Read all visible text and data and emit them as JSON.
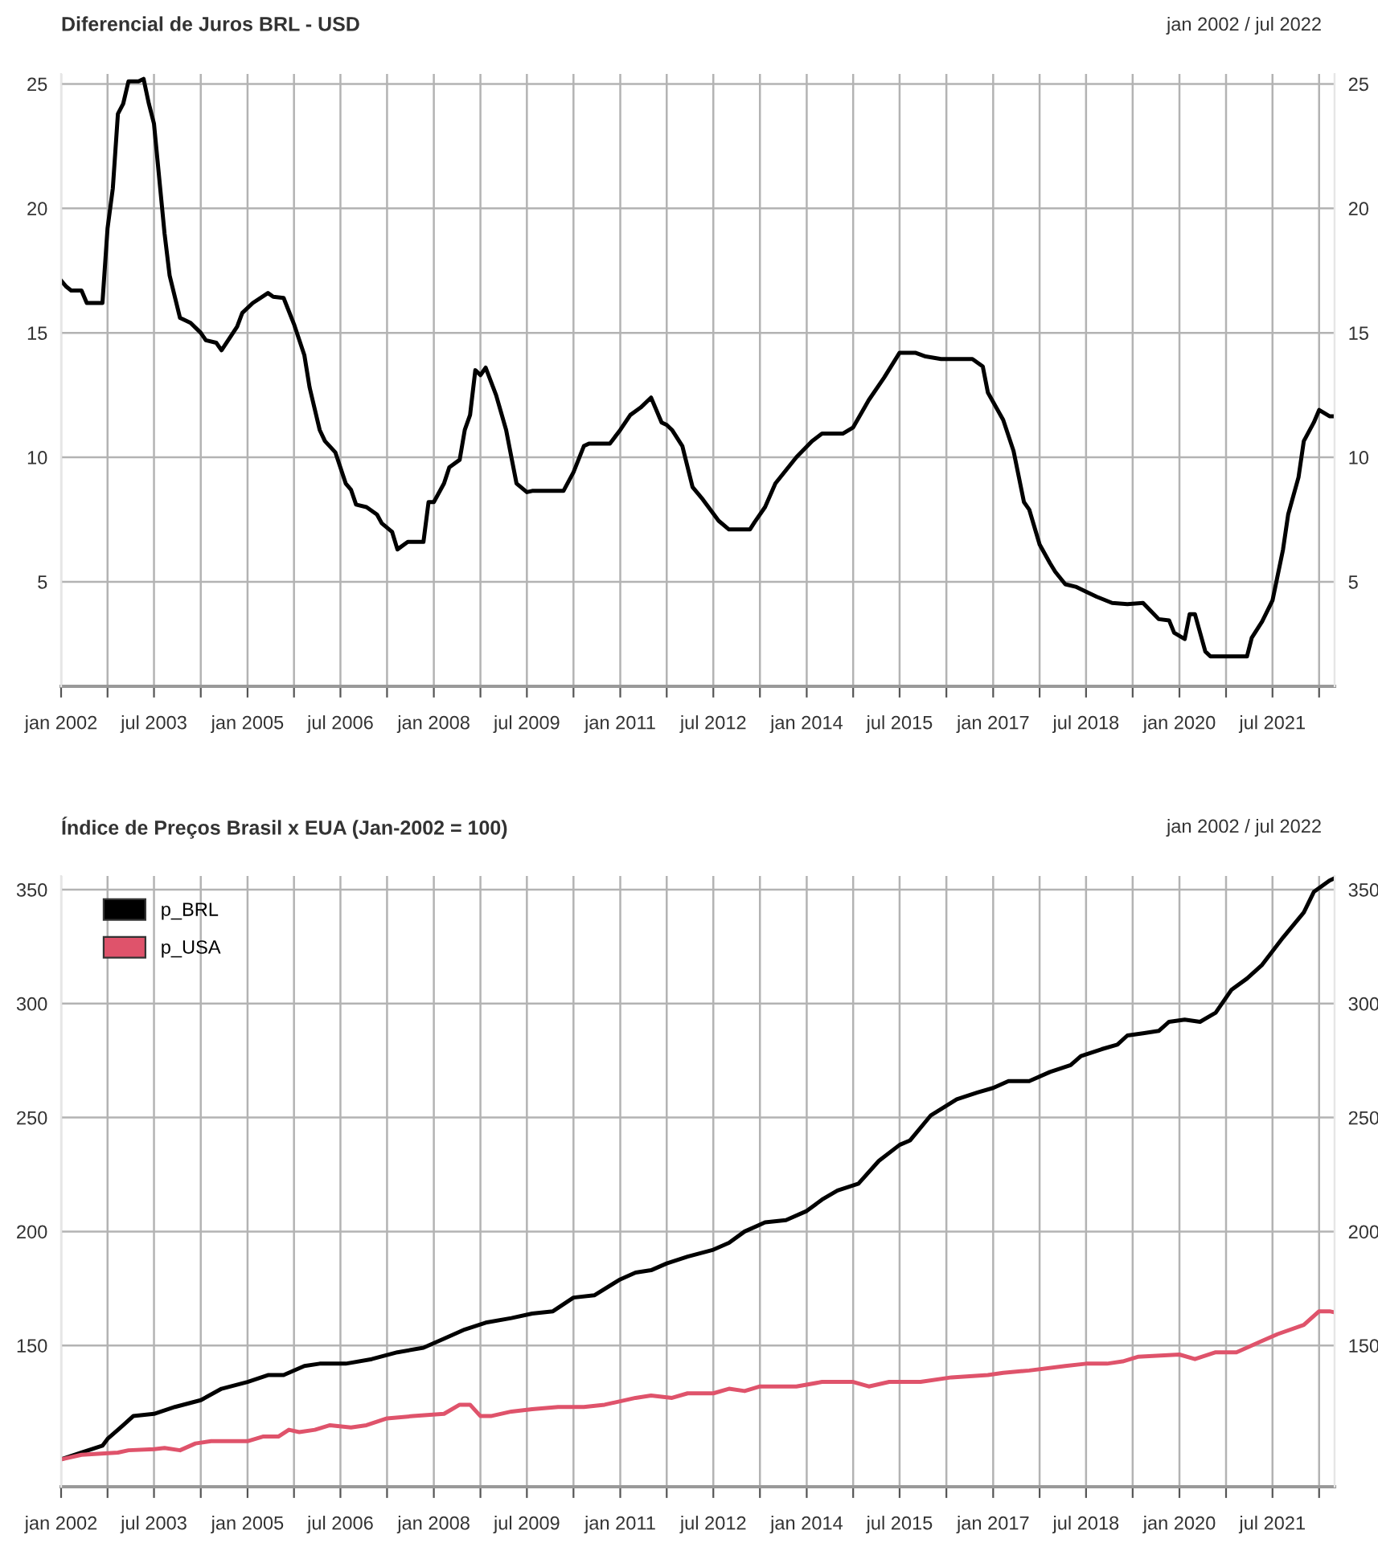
{
  "chart_data": [
    {
      "type": "line",
      "title": "Diferencial de Juros BRL - USD",
      "subtitle": "jan 2002 / jul 2022",
      "x": [
        "2002-01",
        "2002-02",
        "2002-03",
        "2002-05",
        "2002-06",
        "2002-09",
        "2002-10",
        "2002-11",
        "2002-12",
        "2003-01",
        "2003-02",
        "2003-04",
        "2003-05",
        "2003-06",
        "2003-07",
        "2003-09",
        "2003-10",
        "2003-12",
        "2004-02",
        "2004-04",
        "2004-05",
        "2004-07",
        "2004-08",
        "2004-11",
        "2004-12",
        "2005-02",
        "2005-05",
        "2005-06",
        "2005-08",
        "2005-10",
        "2005-12",
        "2006-01",
        "2006-03",
        "2006-04",
        "2006-06",
        "2006-08",
        "2006-09",
        "2006-10",
        "2006-12",
        "2007-02",
        "2007-03",
        "2007-05",
        "2007-06",
        "2007-08",
        "2007-11",
        "2007-12",
        "2008-01",
        "2008-03",
        "2008-04",
        "2008-06",
        "2008-07",
        "2008-08",
        "2008-09",
        "2008-10",
        "2008-11",
        "2009-01",
        "2009-03",
        "2009-04",
        "2009-05",
        "2009-07",
        "2009-08",
        "2010-02",
        "2010-04",
        "2010-06",
        "2010-07",
        "2010-11",
        "2011-01",
        "2011-03",
        "2011-05",
        "2011-07",
        "2011-09",
        "2011-10",
        "2011-11",
        "2012-01",
        "2012-03",
        "2012-05",
        "2012-08",
        "2012-10",
        "2013-02",
        "2013-03",
        "2013-05",
        "2013-07",
        "2013-11",
        "2014-02",
        "2014-04",
        "2014-08",
        "2014-10",
        "2015-01",
        "2015-04",
        "2015-07",
        "2015-10",
        "2015-12",
        "2016-03",
        "2016-09",
        "2016-11",
        "2016-12",
        "2017-03",
        "2017-05",
        "2017-07",
        "2017-08",
        "2017-10",
        "2017-12",
        "2018-01",
        "2018-03",
        "2018-05",
        "2018-07",
        "2018-09",
        "2018-12",
        "2019-03",
        "2019-06",
        "2019-09",
        "2019-11",
        "2019-12",
        "2020-02",
        "2020-03",
        "2020-04",
        "2020-06",
        "2020-07",
        "2021-02",
        "2021-03",
        "2021-05",
        "2021-07",
        "2021-09",
        "2021-10",
        "2021-12",
        "2022-01",
        "2022-03",
        "2022-04",
        "2022-06",
        "2022-07"
      ],
      "series": [
        {
          "color": "#000000",
          "values": [
            17.1,
            16.85,
            16.7,
            16.7,
            16.2,
            16.2,
            19.2,
            20.8,
            23.8,
            24.2,
            25.1,
            25.1,
            25.2,
            24.2,
            23.4,
            19.0,
            17.3,
            15.6,
            15.4,
            15.0,
            14.7,
            14.6,
            14.3,
            15.25,
            15.8,
            16.2,
            16.6,
            16.45,
            16.4,
            15.35,
            14.1,
            12.8,
            11.1,
            10.65,
            10.2,
            8.95,
            8.7,
            8.1,
            8.0,
            7.7,
            7.35,
            7.0,
            6.3,
            6.6,
            6.6,
            8.2,
            8.2,
            8.95,
            9.6,
            9.9,
            11.1,
            11.7,
            13.5,
            13.3,
            13.6,
            12.5,
            11.1,
            10.0,
            8.95,
            8.6,
            8.65,
            8.65,
            9.4,
            10.45,
            10.55,
            10.55,
            11.1,
            11.7,
            12.0,
            12.4,
            11.4,
            11.3,
            11.1,
            10.45,
            8.8,
            8.3,
            7.45,
            7.1,
            7.1,
            7.4,
            8.0,
            8.95,
            10.0,
            10.65,
            10.95,
            10.95,
            11.2,
            12.3,
            13.2,
            14.2,
            14.2,
            14.05,
            13.95,
            13.95,
            13.65,
            12.6,
            11.5,
            10.25,
            8.2,
            7.9,
            6.5,
            5.75,
            5.4,
            4.9,
            4.8,
            4.6,
            4.4,
            4.15,
            4.1,
            4.15,
            3.5,
            3.45,
            2.95,
            2.7,
            3.7,
            3.7,
            2.2,
            2.0,
            2.0,
            2.75,
            3.4,
            4.25,
            6.3,
            7.7,
            9.2,
            10.65,
            11.4,
            11.9,
            11.65,
            11.65
          ]
        }
      ],
      "xlim": [
        "2002-01",
        "2022-07"
      ],
      "xticks": [
        {
          "value": "2002-01",
          "label": "jan 2002"
        },
        {
          "value": "2002-10",
          "label": null
        },
        {
          "value": "2003-07",
          "label": "jul 2003"
        },
        {
          "value": "2004-04",
          "label": null
        },
        {
          "value": "2005-01",
          "label": "jan 2005"
        },
        {
          "value": "2005-10",
          "label": null
        },
        {
          "value": "2006-07",
          "label": "jul 2006"
        },
        {
          "value": "2007-04",
          "label": null
        },
        {
          "value": "2008-01",
          "label": "jan 2008"
        },
        {
          "value": "2008-10",
          "label": null
        },
        {
          "value": "2009-07",
          "label": "jul 2009"
        },
        {
          "value": "2010-04",
          "label": null
        },
        {
          "value": "2011-01",
          "label": "jan 2011"
        },
        {
          "value": "2011-10",
          "label": null
        },
        {
          "value": "2012-07",
          "label": "jul 2012"
        },
        {
          "value": "2013-04",
          "label": null
        },
        {
          "value": "2014-01",
          "label": "jan 2014"
        },
        {
          "value": "2014-10",
          "label": null
        },
        {
          "value": "2015-07",
          "label": "jul 2015"
        },
        {
          "value": "2016-04",
          "label": null
        },
        {
          "value": "2017-01",
          "label": "jan 2017"
        },
        {
          "value": "2017-10",
          "label": null
        },
        {
          "value": "2018-07",
          "label": "jul 2018"
        },
        {
          "value": "2019-04",
          "label": null
        },
        {
          "value": "2020-01",
          "label": "jan 2020"
        },
        {
          "value": "2020-10",
          "label": null
        },
        {
          "value": "2021-07",
          "label": "jul 2021"
        },
        {
          "value": "2022-04",
          "label": null
        }
      ],
      "ylim": [
        0.8,
        25.4
      ],
      "yticks": [
        5,
        10,
        15,
        20,
        25
      ],
      "y2lim": [
        0.8,
        25.4
      ],
      "y2ticks": [
        5,
        10,
        15,
        20,
        25
      ],
      "grid": true,
      "legend": false,
      "line_style": "solid"
    },
    {
      "type": "line",
      "title": "Índice de Preços Brasil x EUA (Jan-2002 = 100)",
      "subtitle": "jan 2002 / jul 2022",
      "series": [
        {
          "name": "p_BRL",
          "color": "#000000",
          "x": [
            "2002-01",
            "2002-05",
            "2002-09",
            "2002-10",
            "2003-01",
            "2003-03",
            "2003-07",
            "2003-11",
            "2004-04",
            "2004-08",
            "2005-01",
            "2005-05",
            "2005-08",
            "2005-12",
            "2006-03",
            "2006-08",
            "2007-01",
            "2007-06",
            "2007-11",
            "2008-03",
            "2008-07",
            "2008-11",
            "2009-04",
            "2009-08",
            "2009-12",
            "2010-04",
            "2010-08",
            "2011-01",
            "2011-04",
            "2011-07",
            "2011-10",
            "2012-02",
            "2012-07",
            "2012-10",
            "2013-01",
            "2013-05",
            "2013-09",
            "2014-01",
            "2014-04",
            "2014-07",
            "2014-11",
            "2015-03",
            "2015-07",
            "2015-09",
            "2016-01",
            "2016-06",
            "2016-10",
            "2017-01",
            "2017-04",
            "2017-08",
            "2017-12",
            "2018-04",
            "2018-06",
            "2018-10",
            "2019-01",
            "2019-03",
            "2019-06",
            "2019-09",
            "2019-11",
            "2020-02",
            "2020-05",
            "2020-08",
            "2020-11",
            "2021-02",
            "2021-05",
            "2021-09",
            "2022-01",
            "2022-03",
            "2022-06",
            "2022-07"
          ],
          "values": [
            100,
            103,
            106,
            109,
            115,
            119,
            120,
            123,
            126,
            131,
            134,
            137,
            137,
            141,
            142,
            142,
            144,
            147,
            149,
            153,
            157,
            160,
            162,
            164,
            165,
            171,
            172,
            179,
            182,
            183,
            186,
            189,
            192,
            195,
            200,
            204,
            205,
            209,
            214,
            218,
            221,
            231,
            238,
            240,
            251,
            258,
            261,
            263,
            266,
            266,
            270,
            273,
            277,
            280,
            282,
            286,
            287,
            288,
            292,
            293,
            292,
            296,
            306,
            311,
            317,
            329,
            340,
            349,
            354,
            355
          ]
        },
        {
          "name": "p_USA",
          "color": "#df536b",
          "x": [
            "2002-01",
            "2002-05",
            "2002-12",
            "2003-02",
            "2003-07",
            "2003-09",
            "2003-12",
            "2004-03",
            "2004-06",
            "2005-01",
            "2005-04",
            "2005-07",
            "2005-09",
            "2005-11",
            "2006-02",
            "2006-05",
            "2006-09",
            "2006-12",
            "2007-04",
            "2007-09",
            "2008-03",
            "2008-06",
            "2008-08",
            "2008-10",
            "2008-12",
            "2009-04",
            "2009-08",
            "2010-01",
            "2010-06",
            "2010-10",
            "2011-04",
            "2011-07",
            "2011-11",
            "2012-02",
            "2012-07",
            "2012-10",
            "2013-01",
            "2013-04",
            "2013-11",
            "2014-04",
            "2014-10",
            "2015-01",
            "2015-05",
            "2015-11",
            "2016-05",
            "2016-12",
            "2017-03",
            "2017-08",
            "2018-03",
            "2018-07",
            "2018-11",
            "2019-02",
            "2019-05",
            "2020-01",
            "2020-04",
            "2020-08",
            "2020-12",
            "2021-05",
            "2021-08",
            "2022-01",
            "2022-04",
            "2022-06",
            "2022-07"
          ],
          "values": [
            100,
            102,
            103,
            104,
            104.5,
            105,
            104,
            107,
            108,
            108,
            110,
            110,
            113,
            112,
            113,
            115,
            114,
            115,
            118,
            119,
            120,
            124,
            124,
            119,
            119,
            121,
            122,
            123,
            123,
            124,
            127,
            128,
            127,
            129,
            129,
            131,
            130,
            132,
            132,
            134,
            134,
            132,
            134,
            134,
            136,
            137,
            138,
            139,
            141,
            142,
            142,
            143,
            145,
            146,
            144,
            147,
            147,
            152,
            155,
            159,
            165,
            165,
            164.5
          ]
        }
      ],
      "xlim": [
        "2002-01",
        "2022-07"
      ],
      "xticks": [
        {
          "value": "2002-01",
          "label": "jan 2002"
        },
        {
          "value": "2002-10",
          "label": null
        },
        {
          "value": "2003-07",
          "label": "jul 2003"
        },
        {
          "value": "2004-04",
          "label": null
        },
        {
          "value": "2005-01",
          "label": "jan 2005"
        },
        {
          "value": "2005-10",
          "label": null
        },
        {
          "value": "2006-07",
          "label": "jul 2006"
        },
        {
          "value": "2007-04",
          "label": null
        },
        {
          "value": "2008-01",
          "label": "jan 2008"
        },
        {
          "value": "2008-10",
          "label": null
        },
        {
          "value": "2009-07",
          "label": "jul 2009"
        },
        {
          "value": "2010-04",
          "label": null
        },
        {
          "value": "2011-01",
          "label": "jan 2011"
        },
        {
          "value": "2011-10",
          "label": null
        },
        {
          "value": "2012-07",
          "label": "jul 2012"
        },
        {
          "value": "2013-04",
          "label": null
        },
        {
          "value": "2014-01",
          "label": "jan 2014"
        },
        {
          "value": "2014-10",
          "label": null
        },
        {
          "value": "2015-07",
          "label": "jul 2015"
        },
        {
          "value": "2016-04",
          "label": null
        },
        {
          "value": "2017-01",
          "label": "jan 2017"
        },
        {
          "value": "2017-10",
          "label": null
        },
        {
          "value": "2018-07",
          "label": "jul 2018"
        },
        {
          "value": "2019-04",
          "label": null
        },
        {
          "value": "2020-01",
          "label": "jan 2020"
        },
        {
          "value": "2020-10",
          "label": null
        },
        {
          "value": "2021-07",
          "label": "jul 2021"
        },
        {
          "value": "2022-04",
          "label": null
        }
      ],
      "ylim": [
        88,
        356
      ],
      "yticks": [
        150,
        200,
        250,
        300,
        350
      ],
      "y2lim": [
        88,
        356
      ],
      "y2ticks": [
        150,
        200,
        250,
        300,
        350
      ],
      "grid": true,
      "legend": "top left",
      "line_style": "solid"
    }
  ]
}
